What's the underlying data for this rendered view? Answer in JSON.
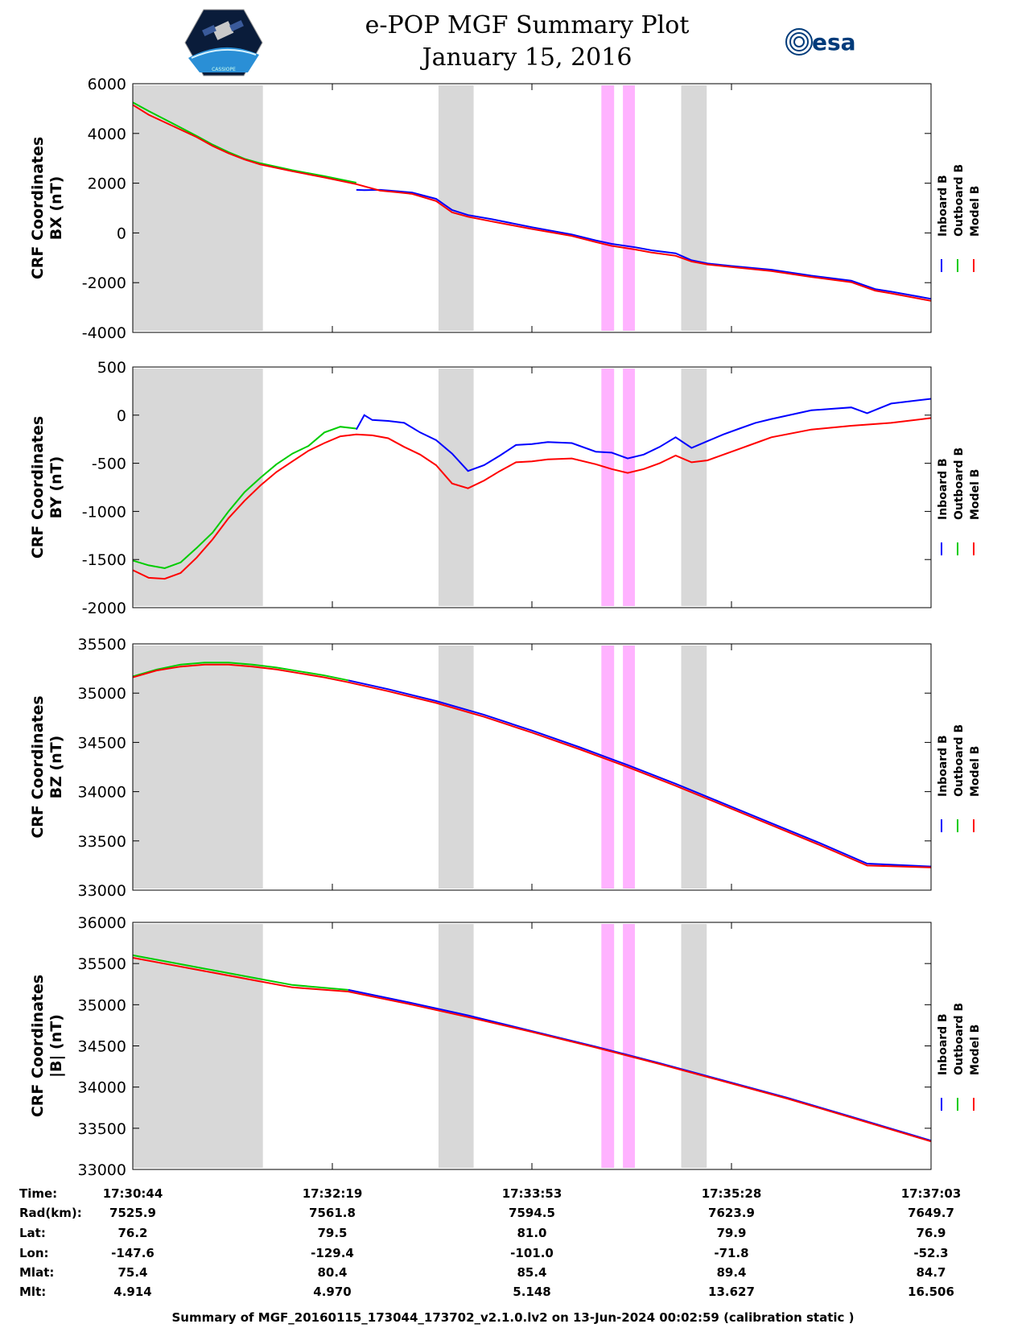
{
  "header": {
    "title": "e-POP MGF Summary Plot",
    "date": "January 15, 2016",
    "logo_left_text": "CASSIOPE",
    "logo_right_text": "esa"
  },
  "legend": {
    "labels": [
      "Inboard B",
      "Outboard B",
      "Model B"
    ],
    "colors": [
      "#0000ff",
      "#00cc00",
      "#ff0000"
    ]
  },
  "shading": {
    "gray_color": "#d8d8d8",
    "magenta_color": "#ffb3ff"
  },
  "chart_data": [
    {
      "type": "line",
      "ylabel_line1": "CRF Coordinates",
      "ylabel_line2": "BX (nT)",
      "ylim": [
        -4000,
        6000
      ],
      "yticks": [
        -4000,
        -2000,
        0,
        2000,
        4000,
        6000
      ],
      "ytick_labels": [
        "-4000",
        "-2000",
        "0",
        "2000",
        "4000",
        "6000"
      ],
      "series": [
        {
          "name": "Outboard B",
          "color": "#00cc00",
          "x": [
            0,
            0.02,
            0.05,
            0.08,
            0.1,
            0.12,
            0.14,
            0.16,
            0.2,
            0.24,
            0.28
          ],
          "y": [
            5250,
            4900,
            4400,
            3900,
            3550,
            3250,
            2980,
            2800,
            2520,
            2280,
            2020
          ]
        },
        {
          "name": "Inboard B",
          "color": "#0000ff",
          "x": [
            0.28,
            0.29,
            0.31,
            0.33,
            0.35,
            0.38,
            0.4,
            0.42,
            0.45,
            0.5,
            0.55,
            0.58,
            0.6,
            0.63,
            0.65,
            0.68,
            0.7,
            0.72,
            0.75,
            0.8,
            0.85,
            0.9,
            0.93,
            0.95,
            1.0
          ],
          "y": [
            1730,
            1720,
            1730,
            1680,
            1620,
            1370,
            920,
            720,
            550,
            230,
            -60,
            -300,
            -440,
            -580,
            -700,
            -820,
            -1100,
            -1230,
            -1330,
            -1480,
            -1720,
            -1920,
            -2260,
            -2360,
            -2650
          ]
        },
        {
          "name": "Model B",
          "color": "#ff0000",
          "x": [
            0,
            0.02,
            0.05,
            0.08,
            0.1,
            0.12,
            0.14,
            0.16,
            0.2,
            0.24,
            0.28,
            0.31,
            0.33,
            0.35,
            0.38,
            0.4,
            0.42,
            0.45,
            0.5,
            0.55,
            0.58,
            0.6,
            0.63,
            0.65,
            0.68,
            0.7,
            0.72,
            0.75,
            0.8,
            0.85,
            0.9,
            0.93,
            0.95,
            1.0
          ],
          "y": [
            5150,
            4750,
            4300,
            3850,
            3500,
            3200,
            2950,
            2750,
            2480,
            2230,
            1960,
            1700,
            1640,
            1570,
            1280,
            830,
            650,
            460,
            160,
            -120,
            -370,
            -520,
            -670,
            -790,
            -920,
            -1150,
            -1270,
            -1370,
            -1530,
            -1770,
            -1980,
            -2320,
            -2430,
            -2730
          ]
        }
      ]
    },
    {
      "type": "line",
      "ylabel_line1": "CRF Coordinates",
      "ylabel_line2": "BY (nT)",
      "ylim": [
        -2000,
        500
      ],
      "yticks": [
        -2000,
        -1500,
        -1000,
        -500,
        0,
        500
      ],
      "ytick_labels": [
        "-2000",
        "-1500",
        "-1000",
        "-500",
        "0",
        "500"
      ],
      "series": [
        {
          "name": "Outboard B",
          "color": "#00cc00",
          "x": [
            0,
            0.02,
            0.04,
            0.06,
            0.08,
            0.1,
            0.12,
            0.14,
            0.16,
            0.18,
            0.2,
            0.22,
            0.24,
            0.26,
            0.28
          ],
          "y": [
            -1510,
            -1560,
            -1590,
            -1530,
            -1380,
            -1220,
            -1000,
            -800,
            -650,
            -510,
            -400,
            -320,
            -180,
            -120,
            -140
          ]
        },
        {
          "name": "Inboard B",
          "color": "#0000ff",
          "x": [
            0.28,
            0.29,
            0.3,
            0.32,
            0.34,
            0.36,
            0.38,
            0.4,
            0.42,
            0.44,
            0.46,
            0.48,
            0.5,
            0.52,
            0.55,
            0.58,
            0.6,
            0.62,
            0.64,
            0.66,
            0.68,
            0.7,
            0.72,
            0.74,
            0.76,
            0.78,
            0.8,
            0.85,
            0.9,
            0.92,
            0.95,
            1.0
          ],
          "y": [
            -150,
            0,
            -50,
            -60,
            -80,
            -180,
            -260,
            -400,
            -580,
            -520,
            -420,
            -310,
            -300,
            -280,
            -290,
            -380,
            -390,
            -450,
            -410,
            -330,
            -230,
            -340,
            -270,
            -200,
            -140,
            -80,
            -40,
            50,
            80,
            20,
            120,
            170
          ]
        },
        {
          "name": "Model B",
          "color": "#ff0000",
          "x": [
            0,
            0.02,
            0.04,
            0.06,
            0.08,
            0.1,
            0.12,
            0.14,
            0.16,
            0.18,
            0.2,
            0.22,
            0.24,
            0.26,
            0.28,
            0.3,
            0.32,
            0.34,
            0.36,
            0.38,
            0.4,
            0.42,
            0.44,
            0.46,
            0.48,
            0.5,
            0.52,
            0.55,
            0.58,
            0.6,
            0.62,
            0.64,
            0.66,
            0.68,
            0.7,
            0.72,
            0.74,
            0.76,
            0.78,
            0.8,
            0.85,
            0.9,
            0.95,
            1.0
          ],
          "y": [
            -1610,
            -1690,
            -1700,
            -1640,
            -1480,
            -1290,
            -1070,
            -890,
            -730,
            -590,
            -480,
            -370,
            -290,
            -220,
            -200,
            -210,
            -240,
            -330,
            -410,
            -520,
            -710,
            -760,
            -680,
            -580,
            -490,
            -480,
            -460,
            -450,
            -510,
            -560,
            -600,
            -560,
            -500,
            -420,
            -490,
            -470,
            -410,
            -350,
            -290,
            -230,
            -150,
            -110,
            -80,
            -30
          ]
        }
      ]
    },
    {
      "type": "line",
      "ylabel_line1": "CRF Coordinates",
      "ylabel_line2": "BZ (nT)",
      "ylim": [
        33000,
        35500
      ],
      "yticks": [
        33000,
        33500,
        34000,
        34500,
        35000,
        35500
      ],
      "ytick_labels": [
        "33000",
        "33500",
        "34000",
        "34500",
        "35000",
        "35500"
      ],
      "series": [
        {
          "name": "Outboard B",
          "color": "#00cc00",
          "x": [
            0,
            0.03,
            0.06,
            0.09,
            0.12,
            0.15,
            0.18,
            0.21,
            0.24,
            0.27
          ],
          "y": [
            35170,
            35240,
            35290,
            35310,
            35310,
            35290,
            35260,
            35220,
            35180,
            35130
          ]
        },
        {
          "name": "Inboard B",
          "color": "#0000ff",
          "x": [
            0.27,
            0.32,
            0.38,
            0.44,
            0.5,
            0.56,
            0.62,
            0.68,
            0.74,
            0.8,
            0.86,
            0.92,
            1.0
          ],
          "y": [
            35130,
            35040,
            34920,
            34780,
            34620,
            34450,
            34270,
            34080,
            33880,
            33680,
            33480,
            33270,
            33240
          ]
        },
        {
          "name": "Model B",
          "color": "#ff0000",
          "x": [
            0,
            0.03,
            0.06,
            0.09,
            0.12,
            0.15,
            0.18,
            0.21,
            0.24,
            0.27,
            0.32,
            0.38,
            0.44,
            0.5,
            0.56,
            0.62,
            0.68,
            0.74,
            0.8,
            0.86,
            0.92,
            1.0
          ],
          "y": [
            35160,
            35230,
            35270,
            35290,
            35290,
            35270,
            35240,
            35200,
            35160,
            35110,
            35020,
            34900,
            34760,
            34600,
            34430,
            34250,
            34060,
            33860,
            33660,
            33460,
            33250,
            33230
          ]
        }
      ]
    },
    {
      "type": "line",
      "ylabel_line1": "CRF Coordinates",
      "ylabel_line2": "|B| (nT)",
      "ylim": [
        33000,
        36000
      ],
      "yticks": [
        33000,
        33500,
        34000,
        34500,
        35000,
        35500,
        36000
      ],
      "ytick_labels": [
        "33000",
        "33500",
        "34000",
        "34500",
        "35000",
        "35500",
        "36000"
      ],
      "series": [
        {
          "name": "Outboard B",
          "color": "#00cc00",
          "x": [
            0,
            0.05,
            0.1,
            0.15,
            0.2,
            0.27
          ],
          "y": [
            35600,
            35510,
            35420,
            35330,
            35240,
            35180
          ]
        },
        {
          "name": "Inboard B",
          "color": "#0000ff",
          "x": [
            0.27,
            0.35,
            0.42,
            0.5,
            0.58,
            0.66,
            0.74,
            0.82,
            0.9,
            1.0
          ],
          "y": [
            35180,
            35020,
            34870,
            34680,
            34490,
            34290,
            34080,
            33870,
            33640,
            33350
          ]
        },
        {
          "name": "Model B",
          "color": "#ff0000",
          "x": [
            0,
            0.05,
            0.1,
            0.15,
            0.2,
            0.27,
            0.35,
            0.42,
            0.5,
            0.58,
            0.66,
            0.74,
            0.82,
            0.9,
            1.0
          ],
          "y": [
            35570,
            35480,
            35390,
            35300,
            35210,
            35160,
            35000,
            34850,
            34670,
            34480,
            34280,
            34070,
            33860,
            33630,
            33340
          ]
        }
      ]
    }
  ],
  "bands": {
    "gray": [
      [
        0.0,
        0.163
      ],
      [
        0.383,
        0.427
      ],
      [
        0.687,
        0.719
      ]
    ],
    "magenta": [
      [
        0.587,
        0.603
      ],
      [
        0.614,
        0.629
      ]
    ]
  },
  "xticks": [
    0,
    0.25,
    0.5,
    0.75,
    1.0
  ],
  "table": {
    "labels": [
      "Time:",
      "Rad(km):",
      "Lat:",
      "Lon:",
      "Mlat:",
      "Mlt:"
    ],
    "columns": [
      [
        "17:30:44",
        "7525.9",
        "76.2",
        "-147.6",
        "75.4",
        "4.914"
      ],
      [
        "17:32:19",
        "7561.8",
        "79.5",
        "-129.4",
        "80.4",
        "4.970"
      ],
      [
        "17:33:53",
        "7594.5",
        "81.0",
        "-101.0",
        "85.4",
        "5.148"
      ],
      [
        "17:35:28",
        "7623.9",
        "79.9",
        "-71.8",
        "89.4",
        "13.627"
      ],
      [
        "17:37:03",
        "7649.7",
        "76.9",
        "-52.3",
        "84.7",
        "16.506"
      ]
    ]
  },
  "footer": "Summary of MGF_20160115_173044_173702_v2.1.0.lv2 on 13-Jun-2024 00:02:59 (calibration static )"
}
